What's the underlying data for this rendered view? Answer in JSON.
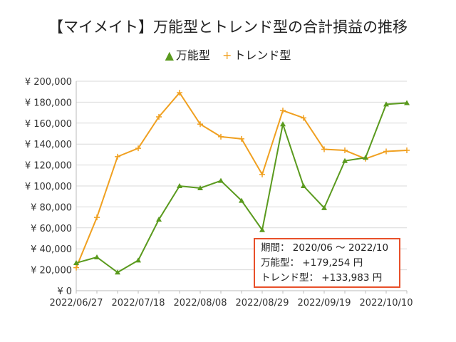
{
  "chart_data": {
    "type": "line",
    "title": "【マイメイト】万能型とトレンド型の合計損益の推移",
    "xlabel": "",
    "ylabel": "",
    "ylim": [
      0,
      200000
    ],
    "y_ticks": [
      "¥ 0",
      "¥ 20,000",
      "¥ 40,000",
      "¥ 60,000",
      "¥ 80,000",
      "¥ 100,000",
      "¥ 120,000",
      "¥ 140,000",
      "¥ 160,000",
      "¥ 180,000",
      "¥ 200,000"
    ],
    "x_tick_labels": [
      "2022/06/27",
      "2022/07/18",
      "2022/08/08",
      "2022/08/29",
      "2022/09/19",
      "2022/10/10"
    ],
    "x": [
      "2022/06/27",
      "2022/07/04",
      "2022/07/11",
      "2022/07/18",
      "2022/07/25",
      "2022/08/01",
      "2022/08/08",
      "2022/08/15",
      "2022/08/22",
      "2022/08/29",
      "2022/09/05",
      "2022/09/12",
      "2022/09/19",
      "2022/09/26",
      "2022/10/03",
      "2022/10/10",
      "2022/10/17"
    ],
    "grid": true,
    "legend_position": "top",
    "series": [
      {
        "name": "万能型",
        "color": "#5a9a1e",
        "marker": "triangle",
        "values": [
          26500,
          32000,
          17500,
          29000,
          68000,
          100000,
          98000,
          105000,
          86000,
          58000,
          159000,
          100000,
          79000,
          124000,
          127000,
          178000,
          179254
        ]
      },
      {
        "name": "トレンド型",
        "color": "#f0a020",
        "marker": "plus",
        "values": [
          22000,
          70000,
          128000,
          136000,
          166000,
          189000,
          159000,
          147000,
          145000,
          111000,
          172000,
          165000,
          135000,
          134000,
          126000,
          133000,
          133983
        ]
      }
    ],
    "annotation": {
      "period_label": "期間：",
      "period_value": "2020/06 ～ 2022/10",
      "line1_label": "万能型：",
      "line1_value": "+179,254 円",
      "line2_label": "トレンド型：",
      "line2_value": "+133,983 円",
      "border_color": "#e8502a"
    }
  }
}
